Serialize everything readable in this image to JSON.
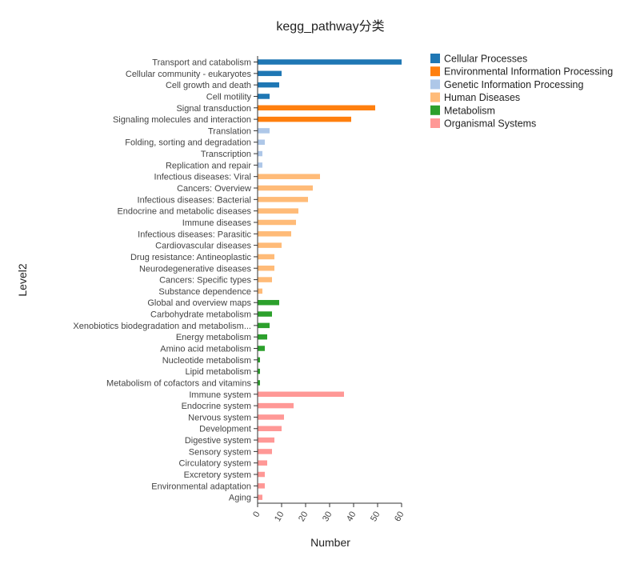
{
  "chart_data": {
    "type": "bar",
    "orientation": "horizontal",
    "title": "kegg_pathway分类",
    "xlabel": "Number",
    "ylabel": "Level2",
    "xlim": [
      0,
      60
    ],
    "xticks": [
      0,
      10,
      20,
      30,
      40,
      50,
      60
    ],
    "grid": false,
    "legend_position": "top-right",
    "groups": [
      {
        "name": "Cellular Processes",
        "color": "#1f77b4"
      },
      {
        "name": "Environmental Information Processing",
        "color": "#ff7f0e"
      },
      {
        "name": "Genetic Information Processing",
        "color": "#aec7e8"
      },
      {
        "name": "Human Diseases",
        "color": "#ffbb78"
      },
      {
        "name": "Metabolism",
        "color": "#2ca02c"
      },
      {
        "name": "Organismal Systems",
        "color": "#ff9896"
      }
    ],
    "bars": [
      {
        "category": "Transport and catabolism",
        "value": 60,
        "group": "Cellular Processes"
      },
      {
        "category": "Cellular community - eukaryotes",
        "value": 10,
        "group": "Cellular Processes"
      },
      {
        "category": "Cell growth and death",
        "value": 9,
        "group": "Cellular Processes"
      },
      {
        "category": "Cell motility",
        "value": 5,
        "group": "Cellular Processes"
      },
      {
        "category": "Signal transduction",
        "value": 49,
        "group": "Environmental Information Processing"
      },
      {
        "category": "Signaling molecules and interaction",
        "value": 39,
        "group": "Environmental Information Processing"
      },
      {
        "category": "Translation",
        "value": 5,
        "group": "Genetic Information Processing"
      },
      {
        "category": "Folding, sorting and degradation",
        "value": 3,
        "group": "Genetic Information Processing"
      },
      {
        "category": "Transcription",
        "value": 2,
        "group": "Genetic Information Processing"
      },
      {
        "category": "Replication and repair",
        "value": 2,
        "group": "Genetic Information Processing"
      },
      {
        "category": "Infectious diseases: Viral",
        "value": 26,
        "group": "Human Diseases"
      },
      {
        "category": "Cancers: Overview",
        "value": 23,
        "group": "Human Diseases"
      },
      {
        "category": "Infectious diseases: Bacterial",
        "value": 21,
        "group": "Human Diseases"
      },
      {
        "category": "Endocrine and metabolic diseases",
        "value": 17,
        "group": "Human Diseases"
      },
      {
        "category": "Immune diseases",
        "value": 16,
        "group": "Human Diseases"
      },
      {
        "category": "Infectious diseases: Parasitic",
        "value": 14,
        "group": "Human Diseases"
      },
      {
        "category": "Cardiovascular diseases",
        "value": 10,
        "group": "Human Diseases"
      },
      {
        "category": "Drug resistance: Antineoplastic",
        "value": 7,
        "group": "Human Diseases"
      },
      {
        "category": "Neurodegenerative diseases",
        "value": 7,
        "group": "Human Diseases"
      },
      {
        "category": "Cancers: Specific types",
        "value": 6,
        "group": "Human Diseases"
      },
      {
        "category": "Substance dependence",
        "value": 2,
        "group": "Human Diseases"
      },
      {
        "category": "Global and overview maps",
        "value": 9,
        "group": "Metabolism"
      },
      {
        "category": "Carbohydrate metabolism",
        "value": 6,
        "group": "Metabolism"
      },
      {
        "category": "Xenobiotics biodegradation and metabolism...",
        "value": 5,
        "group": "Metabolism"
      },
      {
        "category": "Energy metabolism",
        "value": 4,
        "group": "Metabolism"
      },
      {
        "category": "Amino acid metabolism",
        "value": 3,
        "group": "Metabolism"
      },
      {
        "category": "Nucleotide metabolism",
        "value": 1,
        "group": "Metabolism"
      },
      {
        "category": "Lipid metabolism",
        "value": 1,
        "group": "Metabolism"
      },
      {
        "category": "Metabolism of cofactors and vitamins",
        "value": 1,
        "group": "Metabolism"
      },
      {
        "category": "Immune system",
        "value": 36,
        "group": "Organismal Systems"
      },
      {
        "category": "Endocrine system",
        "value": 15,
        "group": "Organismal Systems"
      },
      {
        "category": "Nervous system",
        "value": 11,
        "group": "Organismal Systems"
      },
      {
        "category": "Development",
        "value": 10,
        "group": "Organismal Systems"
      },
      {
        "category": "Digestive system",
        "value": 7,
        "group": "Organismal Systems"
      },
      {
        "category": "Sensory system",
        "value": 6,
        "group": "Organismal Systems"
      },
      {
        "category": "Circulatory system",
        "value": 4,
        "group": "Organismal Systems"
      },
      {
        "category": "Excretory system",
        "value": 3,
        "group": "Organismal Systems"
      },
      {
        "category": "Environmental adaptation",
        "value": 3,
        "group": "Organismal Systems"
      },
      {
        "category": "Aging",
        "value": 2,
        "group": "Organismal Systems"
      }
    ]
  }
}
